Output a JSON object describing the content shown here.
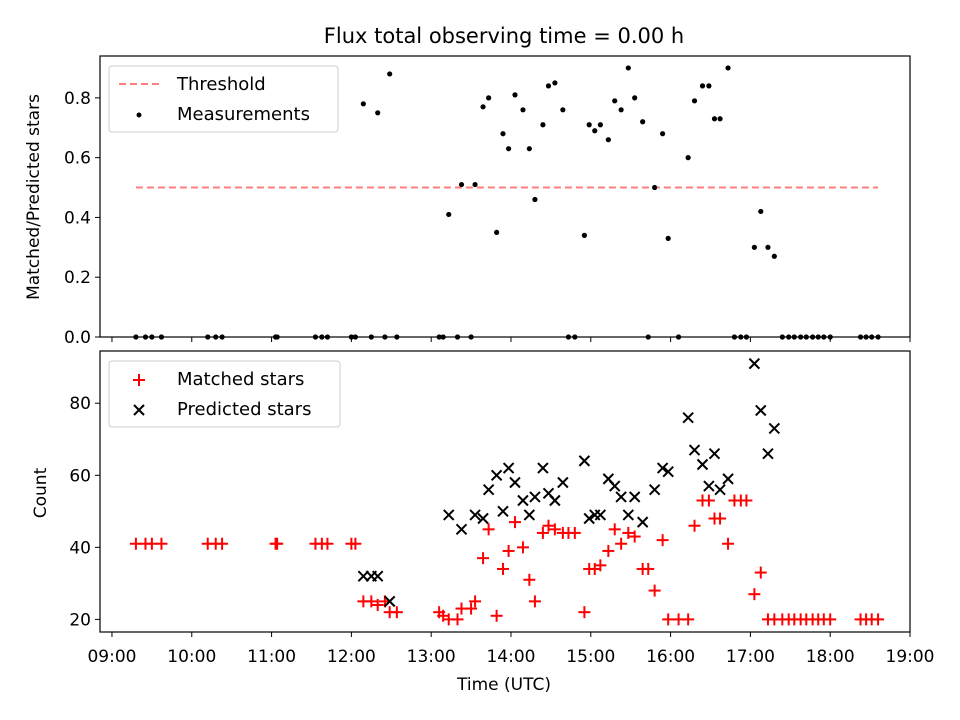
{
  "title": "Flux total observing time = 0.00 h",
  "colors": {
    "threshold": "#ff7f7f",
    "measurement": "#000000",
    "matched": "#ff0000",
    "predicted": "#000000"
  },
  "chart_data": [
    {
      "type": "scatter",
      "title": "Flux total observing time = 0.00 h",
      "ylabel": "Matched/Predicted stars",
      "xlabel": "",
      "xlim": [
        8.85,
        19.0
      ],
      "ylim": [
        0.0,
        0.94
      ],
      "yticks": [
        "0.0",
        "0.2",
        "0.4",
        "0.6",
        "0.8"
      ],
      "legend": {
        "position": "upper-left",
        "entries": [
          "Threshold",
          "Measurements"
        ]
      },
      "threshold": {
        "name": "Threshold",
        "value": 0.5,
        "x": [
          9.3,
          18.6
        ]
      },
      "series": [
        {
          "name": "Measurements",
          "x": [
            9.3,
            9.42,
            9.5,
            9.62,
            10.2,
            10.3,
            10.38,
            11.05,
            11.07,
            11.55,
            11.63,
            11.7,
            12.0,
            12.05,
            12.15,
            12.25,
            12.33,
            12.42,
            12.48,
            12.57,
            13.1,
            13.15,
            13.22,
            13.33,
            13.38,
            13.5,
            13.55,
            13.65,
            13.72,
            13.82,
            13.9,
            13.97,
            14.05,
            14.15,
            14.23,
            14.3,
            14.4,
            14.47,
            14.55,
            14.65,
            14.72,
            14.8,
            14.92,
            14.98,
            15.05,
            15.12,
            15.22,
            15.3,
            15.38,
            15.47,
            15.55,
            15.65,
            15.72,
            15.8,
            15.9,
            15.97,
            16.1,
            16.22,
            16.3,
            16.4,
            16.48,
            16.55,
            16.62,
            16.72,
            16.8,
            16.88,
            16.95,
            17.05,
            17.13,
            17.22,
            17.3,
            17.4,
            17.48,
            17.55,
            17.63,
            17.7,
            17.78,
            17.85,
            17.92,
            18.0,
            18.38,
            18.45,
            18.52,
            18.6
          ],
          "y": [
            0.0,
            0.0,
            0.0,
            0.0,
            0.0,
            0.0,
            0.0,
            0.0,
            0.0,
            0.0,
            0.0,
            0.0,
            0.0,
            0.0,
            0.78,
            0.0,
            0.75,
            0.0,
            0.88,
            0.0,
            0.0,
            0.0,
            0.41,
            0.0,
            0.51,
            0.0,
            0.51,
            0.77,
            0.8,
            0.35,
            0.68,
            0.63,
            0.81,
            0.76,
            0.63,
            0.46,
            0.71,
            0.84,
            0.85,
            0.76,
            0.0,
            0.0,
            0.34,
            0.71,
            0.69,
            0.71,
            0.66,
            0.79,
            0.76,
            0.9,
            0.8,
            0.72,
            0.0,
            0.5,
            0.68,
            0.33,
            0.0,
            0.6,
            0.79,
            0.84,
            0.84,
            0.73,
            0.73,
            0.9,
            0.0,
            0.0,
            0.0,
            0.3,
            0.42,
            0.3,
            0.27,
            0.0,
            0.0,
            0.0,
            0.0,
            0.0,
            0.0,
            0.0,
            0.0,
            0.0,
            0.0,
            0.0,
            0.0,
            0.0
          ]
        }
      ]
    },
    {
      "type": "scatter",
      "title": "",
      "ylabel": "Count",
      "xlabel": "Time (UTC)",
      "xlim": [
        8.85,
        19.0
      ],
      "ylim": [
        16.5,
        94.5
      ],
      "yticks": [
        "20",
        "40",
        "60",
        "80"
      ],
      "xticks": [
        "09:00",
        "10:00",
        "11:00",
        "12:00",
        "13:00",
        "14:00",
        "15:00",
        "16:00",
        "17:00",
        "18:00",
        "19:00"
      ],
      "legend": {
        "position": "upper-left",
        "entries": [
          "Matched stars",
          "Predicted stars"
        ]
      },
      "series": [
        {
          "name": "Matched stars",
          "marker": "+",
          "x": [
            9.3,
            9.42,
            9.5,
            9.62,
            10.2,
            10.3,
            10.38,
            11.05,
            11.07,
            11.55,
            11.63,
            11.7,
            12.0,
            12.05,
            12.15,
            12.25,
            12.33,
            12.42,
            12.48,
            12.57,
            13.1,
            13.15,
            13.22,
            13.33,
            13.38,
            13.5,
            13.55,
            13.65,
            13.72,
            13.82,
            13.9,
            13.97,
            14.05,
            14.15,
            14.23,
            14.3,
            14.4,
            14.47,
            14.55,
            14.65,
            14.72,
            14.8,
            14.92,
            14.98,
            15.05,
            15.12,
            15.22,
            15.3,
            15.38,
            15.47,
            15.55,
            15.65,
            15.72,
            15.8,
            15.9,
            15.97,
            16.1,
            16.22,
            16.3,
            16.4,
            16.48,
            16.55,
            16.62,
            16.72,
            16.8,
            16.88,
            16.95,
            17.05,
            17.13,
            17.22,
            17.3,
            17.4,
            17.48,
            17.55,
            17.63,
            17.7,
            17.78,
            17.85,
            17.92,
            18.0,
            18.38,
            18.45,
            18.52,
            18.6
          ],
          "y": [
            41,
            41,
            41,
            41,
            41,
            41,
            41,
            41,
            41,
            41,
            41,
            41,
            41,
            41,
            25,
            25,
            24,
            25,
            22,
            22,
            22,
            21,
            20,
            20,
            23,
            23,
            25,
            37,
            45,
            21,
            34,
            39,
            47,
            40,
            31,
            25,
            44,
            46,
            45,
            44,
            44,
            44,
            22,
            34,
            34,
            35,
            39,
            45,
            41,
            44,
            43,
            34,
            34,
            28,
            42,
            20,
            20,
            20,
            46,
            53,
            53,
            48,
            48,
            41,
            53,
            53,
            53,
            27,
            33,
            20,
            20,
            20,
            20,
            20,
            20,
            20,
            20,
            20,
            20,
            20,
            20,
            20,
            20,
            20
          ]
        },
        {
          "name": "Predicted stars",
          "marker": "x",
          "x": [
            12.15,
            12.25,
            12.33,
            12.48,
            13.22,
            13.38,
            13.55,
            13.65,
            13.72,
            13.82,
            13.9,
            13.97,
            14.05,
            14.15,
            14.23,
            14.3,
            14.4,
            14.47,
            14.55,
            14.65,
            14.92,
            14.98,
            15.05,
            15.12,
            15.22,
            15.3,
            15.38,
            15.47,
            15.55,
            15.65,
            15.8,
            15.9,
            15.97,
            16.22,
            16.3,
            16.4,
            16.48,
            16.55,
            16.62,
            16.72,
            17.05,
            17.13,
            17.22,
            17.3
          ],
          "y": [
            32,
            32,
            32,
            25,
            49,
            45,
            49,
            48,
            56,
            60,
            50,
            62,
            58,
            53,
            49,
            54,
            62,
            55,
            53,
            58,
            64,
            48,
            49,
            49,
            59,
            57,
            54,
            49,
            54,
            47,
            56,
            62,
            61,
            76,
            67,
            63,
            57,
            66,
            56,
            59,
            91,
            78,
            66,
            73
          ]
        }
      ]
    }
  ]
}
